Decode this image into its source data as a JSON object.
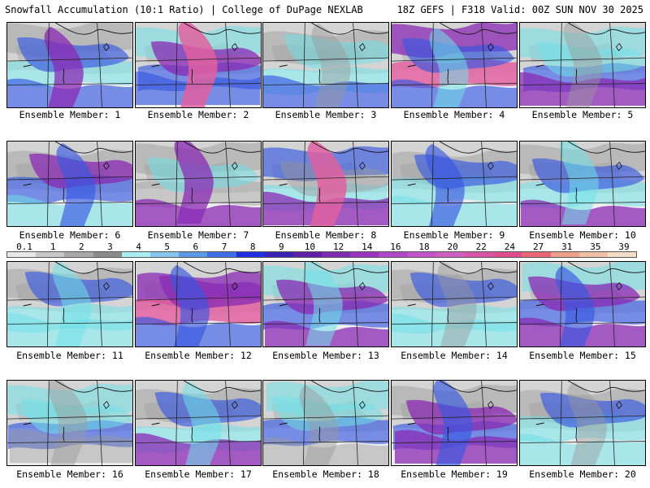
{
  "header": {
    "title": "Snowfall Accumulation (10:1 Ratio) | College of DuPage NEXLAB",
    "run_info": "18Z GEFS | F318 Valid: 00Z SUN NOV 30 2025"
  },
  "member_label_prefix": "Ensemble Member:",
  "members": [
    {
      "num": "1",
      "scheme": [
        0,
        1,
        2,
        2,
        3
      ]
    },
    {
      "num": "2",
      "scheme": [
        1,
        2,
        3,
        2,
        4
      ]
    },
    {
      "num": "3",
      "scheme": [
        0,
        1,
        1,
        2,
        0
      ]
    },
    {
      "num": "4",
      "scheme": [
        3,
        4,
        2,
        2,
        1
      ]
    },
    {
      "num": "5",
      "scheme": [
        1,
        2,
        1,
        3,
        0
      ]
    },
    {
      "num": "6",
      "scheme": [
        0,
        2,
        3,
        1,
        2
      ]
    },
    {
      "num": "7",
      "scheme": [
        0,
        0,
        1,
        3,
        3
      ]
    },
    {
      "num": "8",
      "scheme": [
        2,
        1,
        0,
        3,
        4
      ]
    },
    {
      "num": "9",
      "scheme": [
        0,
        1,
        2,
        1,
        2
      ]
    },
    {
      "num": "10",
      "scheme": [
        0,
        1,
        2,
        3,
        1
      ]
    },
    {
      "num": "11",
      "scheme": [
        0,
        1,
        2,
        1,
        1
      ]
    },
    {
      "num": "12",
      "scheme": [
        3,
        4,
        3,
        2,
        2
      ]
    },
    {
      "num": "13",
      "scheme": [
        1,
        2,
        3,
        3,
        1
      ]
    },
    {
      "num": "14",
      "scheme": [
        0,
        1,
        2,
        1,
        0
      ]
    },
    {
      "num": "15",
      "scheme": [
        1,
        2,
        3,
        3,
        2
      ]
    },
    {
      "num": "16",
      "scheme": [
        1,
        2,
        1,
        0,
        0
      ]
    },
    {
      "num": "17",
      "scheme": [
        0,
        1,
        2,
        3,
        1
      ]
    },
    {
      "num": "18",
      "scheme": [
        1,
        2,
        1,
        0,
        0
      ]
    },
    {
      "num": "19",
      "scheme": [
        0,
        2,
        3,
        3,
        2
      ]
    },
    {
      "num": "20",
      "scheme": [
        0,
        1,
        2,
        1,
        0
      ]
    }
  ],
  "colorscale": {
    "ticks": [
      "0.1",
      "1",
      "2",
      "3",
      "4",
      "5",
      "6",
      "7",
      "8",
      "9",
      "10",
      "12",
      "14",
      "16",
      "18",
      "20",
      "22",
      "24",
      "27",
      "31",
      "35",
      "39"
    ],
    "colors": [
      "#e8e8e8",
      "#c8c8c8",
      "#a8a8a8",
      "#8c8c8c",
      "#a8eef0",
      "#86c6ee",
      "#5c9ae8",
      "#3f6ee6",
      "#2030e0",
      "#3a22b8",
      "#6020a8",
      "#7e2ab2",
      "#9a36be",
      "#b046c8",
      "#c454cc",
      "#d060c0",
      "#d856a8",
      "#e04e90",
      "#e86878",
      "#eea08a",
      "#f2c0a8",
      "#f6ddc8"
    ]
  },
  "intensity_colors": [
    "#9a9a9a",
    "#6fe0e8",
    "#3858e0",
    "#8a2ab4",
    "#e060a0"
  ]
}
